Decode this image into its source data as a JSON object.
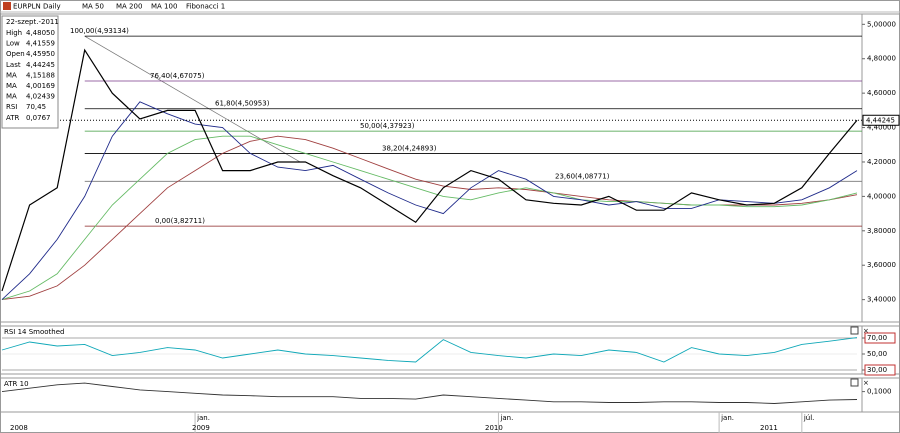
{
  "header": {
    "instrument": "EURPLN Daily",
    "indicators": [
      "MA 50",
      "MA 200",
      "MA 100",
      "Fibonacci 1"
    ]
  },
  "info_box": {
    "date": "22-szept.-2011",
    "rows": [
      {
        "name": "High",
        "value": "4,48050",
        "color": "#000000"
      },
      {
        "name": "Low",
        "value": "4,41559",
        "color": "#000000"
      },
      {
        "name": "Open",
        "value": "4,45950",
        "color": "#000000"
      },
      {
        "name": "Last",
        "value": "4,44245",
        "color": "#000000"
      },
      {
        "name": "MA",
        "value": "4,15188",
        "color": "#1f2a8a"
      },
      {
        "name": "MA",
        "value": "4,00169",
        "color": "#b03030"
      },
      {
        "name": "MA",
        "value": "4,02439",
        "color": "#3a9a3a"
      },
      {
        "name": "RSI",
        "value": "70,45",
        "color": "#10a8b8"
      },
      {
        "name": "ATR",
        "value": "0,0767",
        "color": "#000000"
      }
    ]
  },
  "x_axis": {
    "years": [
      "2008",
      "2009",
      "2010",
      "2011"
    ]
  },
  "chart_data": [
    {
      "type": "line",
      "ylim": [
        3.27,
        5.06
      ],
      "yticks": [
        {
          "value": 3.4,
          "label": "3,40000"
        },
        {
          "value": 3.6,
          "label": "3,60000"
        },
        {
          "value": 3.8,
          "label": "3,80000"
        },
        {
          "value": 4.0,
          "label": "4,00000"
        },
        {
          "value": 4.2,
          "label": "4,20000"
        },
        {
          "value": 4.4,
          "label": "4,40000"
        },
        {
          "value": 4.6,
          "label": "4,60000"
        },
        {
          "value": 4.8,
          "label": "4,80000"
        },
        {
          "value": 5.0,
          "label": "5,00000"
        }
      ],
      "categories": [
        null,
        null,
        null,
        null,
        null,
        null,
        null,
        "jan.",
        null,
        null,
        null,
        null,
        null,
        null,
        null,
        null,
        null,
        null,
        "jan.",
        null,
        null,
        null,
        null,
        null,
        null,
        null,
        "jan.",
        null,
        null,
        "júl.",
        null,
        null
      ],
      "series": [
        {
          "name": "EURPLN",
          "color": "#000000",
          "values": [
            3.45,
            3.95,
            4.05,
            4.85,
            4.6,
            4.45,
            4.5,
            4.5,
            4.15,
            4.15,
            4.2,
            4.2,
            4.12,
            4.05,
            3.95,
            3.85,
            4.05,
            4.15,
            4.1,
            3.98,
            3.96,
            3.95,
            4.0,
            3.92,
            3.92,
            4.02,
            3.98,
            3.95,
            3.96,
            4.05,
            4.25,
            4.44245
          ]
        },
        {
          "name": "MA 50",
          "color": "#1f2a8a",
          "values": [
            3.4,
            3.55,
            3.75,
            4.0,
            4.35,
            4.55,
            4.48,
            4.42,
            4.4,
            4.25,
            4.17,
            4.15,
            4.18,
            4.1,
            4.02,
            3.95,
            3.9,
            4.05,
            4.15,
            4.1,
            4.0,
            3.98,
            3.95,
            3.97,
            3.93,
            3.93,
            3.98,
            3.97,
            3.96,
            3.98,
            4.05,
            4.15
          ]
        },
        {
          "name": "MA 100",
          "color": "#66bb66",
          "values": [
            3.4,
            3.45,
            3.55,
            3.75,
            3.95,
            4.1,
            4.25,
            4.33,
            4.35,
            4.35,
            4.3,
            4.25,
            4.2,
            4.15,
            4.1,
            4.05,
            4.0,
            3.98,
            4.02,
            4.05,
            4.02,
            3.98,
            3.97,
            3.97,
            3.96,
            3.95,
            3.95,
            3.94,
            3.94,
            3.95,
            3.98,
            4.02
          ]
        },
        {
          "name": "MA 200",
          "color": "#a04040",
          "values": [
            3.4,
            3.42,
            3.48,
            3.6,
            3.75,
            3.9,
            4.05,
            4.15,
            4.25,
            4.32,
            4.35,
            4.33,
            4.28,
            4.22,
            4.16,
            4.1,
            4.06,
            4.04,
            4.05,
            4.04,
            4.02,
            4.0,
            3.98,
            3.97,
            3.96,
            3.95,
            3.95,
            3.95,
            3.95,
            3.96,
            3.98,
            4.01
          ]
        }
      ],
      "fibonacci": [
        {
          "label": "100,00(4,93134)",
          "value": 4.93134,
          "color": "#000000"
        },
        {
          "label": "76,40(4,67075)",
          "value": 4.67075,
          "color": "#7a3a8a"
        },
        {
          "label": "61,80(4,50953)",
          "value": 4.50953,
          "color": "#000000"
        },
        {
          "label": "50,00(4,37923)",
          "value": 4.37923,
          "color": "#3a9a3a"
        },
        {
          "label": "38,20(4,24893)",
          "value": 4.24893,
          "color": "#000000"
        },
        {
          "label": "23,60(4,08771)",
          "value": 4.08771,
          "color": "#777777"
        },
        {
          "label": "0,00(3,82711)",
          "value": 3.82711,
          "color": "#8a2020"
        }
      ],
      "last": {
        "value": 4.44245,
        "label": "4,44245"
      }
    },
    {
      "type": "line",
      "title": "RSI 14 Smoothed",
      "ylim": [
        25,
        85
      ],
      "yticks": [
        {
          "value": 30,
          "label": "30,00"
        },
        {
          "value": 50,
          "label": "50,00"
        },
        {
          "value": 70,
          "label": "70,00"
        }
      ],
      "series": [
        {
          "name": "RSI",
          "color": "#10a8b8",
          "values": [
            55,
            65,
            60,
            62,
            48,
            52,
            58,
            55,
            45,
            50,
            55,
            50,
            48,
            45,
            42,
            40,
            68,
            52,
            48,
            45,
            50,
            48,
            55,
            52,
            40,
            58,
            50,
            48,
            52,
            62,
            66,
            70.45
          ]
        }
      ]
    },
    {
      "type": "line",
      "title": "ATR 10",
      "ylim": [
        0.04,
        0.14
      ],
      "yticks": [
        {
          "value": 0.1,
          "label": "0,1000"
        }
      ],
      "series": [
        {
          "name": "ATR",
          "color": "#333333",
          "values": [
            0.1,
            0.11,
            0.12,
            0.125,
            0.115,
            0.105,
            0.1,
            0.095,
            0.09,
            0.088,
            0.085,
            0.085,
            0.085,
            0.08,
            0.08,
            0.078,
            0.09,
            0.085,
            0.08,
            0.075,
            0.07,
            0.07,
            0.068,
            0.068,
            0.07,
            0.07,
            0.068,
            0.068,
            0.065,
            0.07,
            0.075,
            0.0767
          ]
        }
      ]
    }
  ]
}
